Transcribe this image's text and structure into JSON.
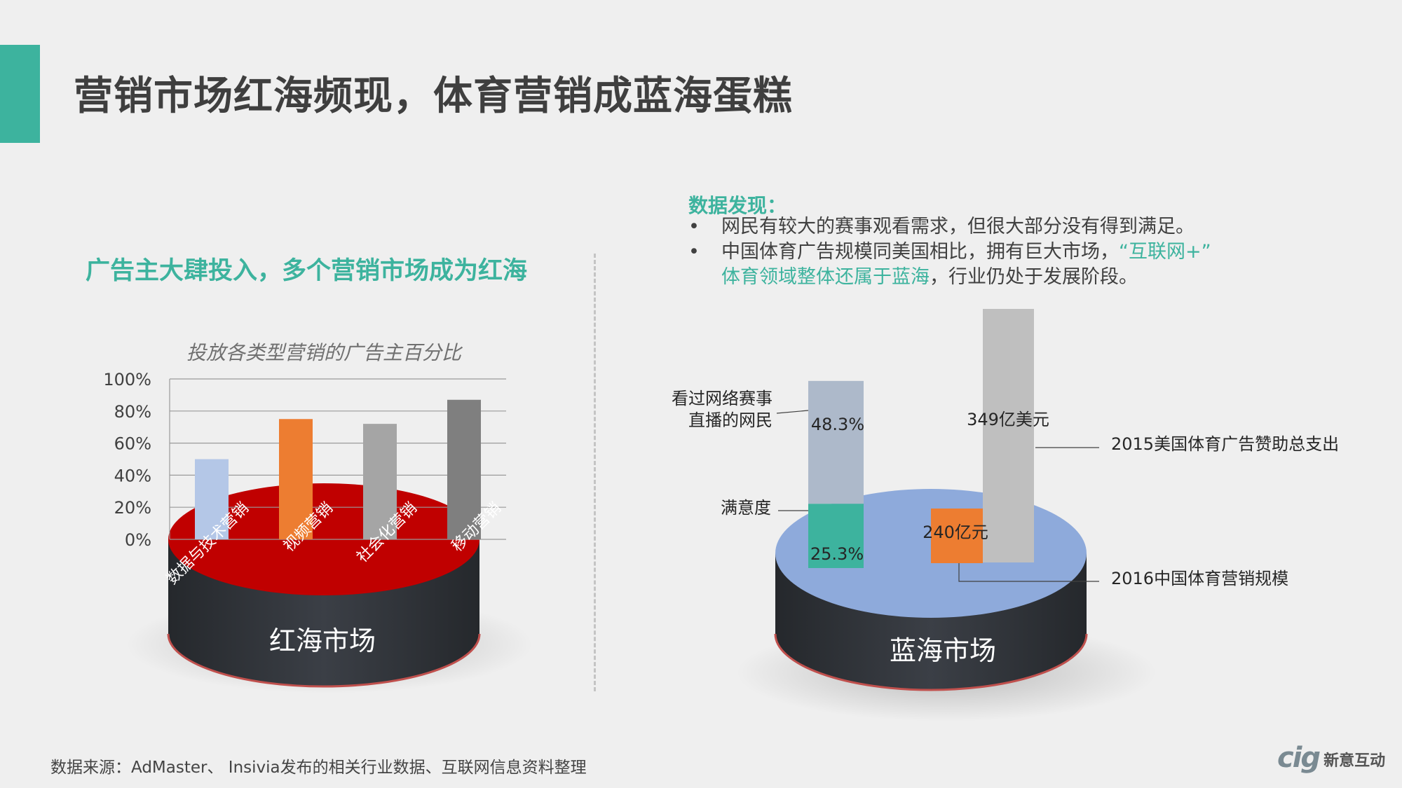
{
  "page": {
    "title": "营销市场红海频现，体育营销成蓝海蛋糕",
    "source": "数据来源：AdMaster、 Insivia发布的相关行业数据、互联网信息资料整理",
    "logo_mark": "cig",
    "logo_text": "新意互动"
  },
  "left": {
    "heading": "广告主大肆投入，多个营销市场成为红海",
    "cylinder_label": "红海市场"
  },
  "right": {
    "findings_heading": "数据发现：",
    "bullet": "•",
    "finding_1": "网民有较大的赛事观看需求，但很大部分没有得到满足。",
    "finding_2_a": "中国体育广告规模同美国相比，拥有巨大市场，",
    "finding_2_hl": "“互联网+”",
    "finding_2_b_hl": "体育领域整体还属于蓝海",
    "finding_2_b": "，行业仍处于发展阶段。",
    "cylinder_label": "蓝海市场"
  },
  "colors": {
    "accent": "#3db39e",
    "red_top": "#c00000",
    "cylinder_side": "#2f3237",
    "blue_top": "#8eaadb",
    "orange": "#ed7d31",
    "light_gray_bar": "#bfbfbf",
    "steel_bar": "#adb9ca"
  },
  "chart_data": [
    {
      "type": "bar",
      "title": "投放各类型营销的广告主百分比",
      "categories": [
        "数据与技术营销",
        "视频营销",
        "社会化营销",
        "移动营销"
      ],
      "values": [
        50,
        75,
        72,
        87
      ],
      "unit": "%",
      "ylim": [
        0,
        100
      ],
      "yticks": [
        "0%",
        "20%",
        "40%",
        "60%",
        "80%",
        "100%"
      ],
      "bar_colors": [
        "#b4c7e7",
        "#ed7d31",
        "#a5a5a5",
        "#7f7f7f"
      ],
      "grid": true
    },
    {
      "type": "bar",
      "note": "stacked percentage bar",
      "segments": [
        {
          "label": "满意度",
          "value": 25.3,
          "value_label": "25.3%",
          "color": "#3db39e"
        },
        {
          "label": "看过网络赛事直播的网民",
          "label_lines": [
            "看过网络赛事",
            "直播的网民"
          ],
          "value": 48.3,
          "value_label": "48.3%",
          "color": "#adb9ca"
        }
      ]
    },
    {
      "type": "bar",
      "note": "comparison bars",
      "items": [
        {
          "label": "2016中国体育营销规模",
          "value_label": "240亿元",
          "color": "#ed7d31"
        },
        {
          "label": "2015美国体育广告赞助总支出",
          "value_label": "349亿美元",
          "color": "#bfbfbf"
        }
      ]
    }
  ]
}
